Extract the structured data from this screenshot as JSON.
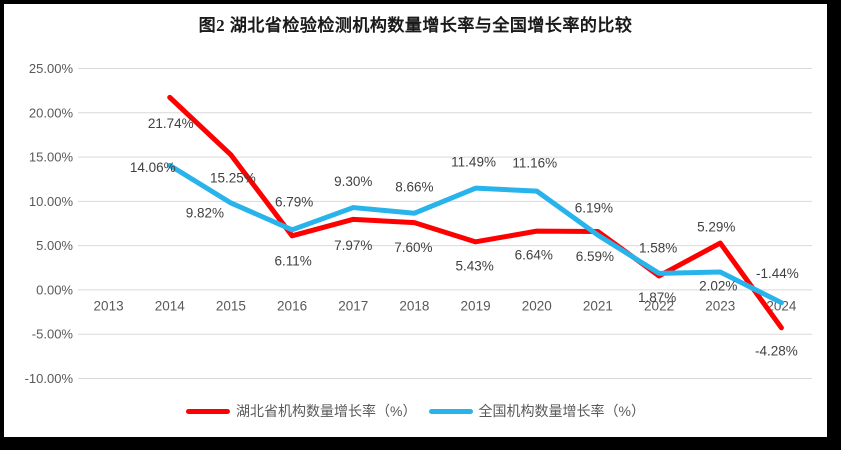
{
  "chart_data": {
    "type": "line",
    "title": "图2 湖北省检验检测机构数量增长率与全国增长率的比较",
    "categories": [
      "2013",
      "2014",
      "2015",
      "2016",
      "2017",
      "2018",
      "2019",
      "2020",
      "2021",
      "2022",
      "2023",
      "2024"
    ],
    "series": [
      {
        "name": "湖北省机构数量增长率（%）",
        "color": "#FF0000",
        "values": [
          null,
          21.74,
          15.25,
          6.11,
          7.97,
          7.6,
          5.43,
          6.64,
          6.59,
          1.58,
          5.29,
          -4.28
        ],
        "label_offsets": [
          null,
          [
            1,
            26
          ],
          [
            2,
            23
          ],
          [
            1,
            25
          ],
          [
            0,
            26
          ],
          [
            -1,
            25
          ],
          [
            -1,
            24
          ],
          [
            -3,
            24
          ],
          [
            -3,
            25
          ],
          [
            -1,
            -28
          ],
          [
            -4,
            -16
          ],
          [
            -5,
            23
          ]
        ]
      },
      {
        "name": "全国机构数量增长率（%）",
        "color": "#28B4EB",
        "values": [
          null,
          14.06,
          9.82,
          6.79,
          9.3,
          8.66,
          11.49,
          11.16,
          6.19,
          1.87,
          2.02,
          -1.44
        ],
        "label_offsets": [
          null,
          [
            -17,
            2
          ],
          [
            -26,
            10
          ],
          [
            2,
            -28
          ],
          [
            0,
            -26
          ],
          [
            0,
            -26
          ],
          [
            -2,
            -26
          ],
          [
            -2,
            -28
          ],
          [
            -4,
            -27
          ],
          [
            -2,
            24
          ],
          [
            -2,
            14
          ],
          [
            -4,
            -29
          ]
        ]
      }
    ],
    "ylim": [
      -10,
      25
    ],
    "ytick_step": 5,
    "ytick_format": "0.00%",
    "data_label_format": "0.00%",
    "grid": true,
    "legend_position": "bottom",
    "colors": {
      "gridline": "#D9D9D9",
      "axis_text": "#595959",
      "data_label_text": "#404040",
      "title_text": "#1a1a1a",
      "frame": "#000000",
      "background": "#ffffff"
    }
  }
}
